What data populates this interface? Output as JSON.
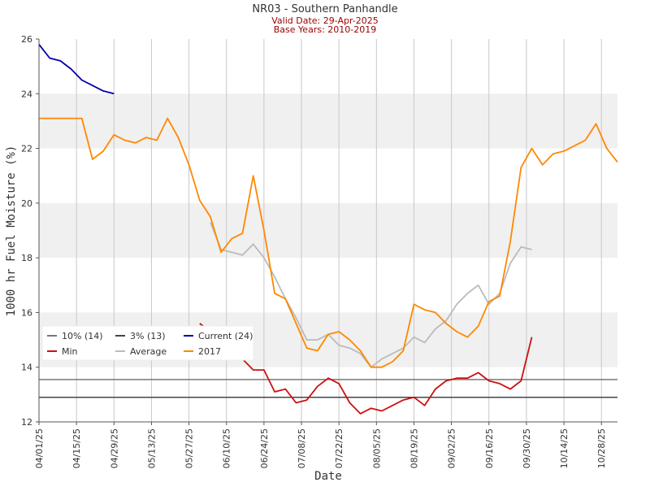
{
  "chart_data": {
    "type": "line",
    "title": "NR03 - Southern Panhandle",
    "subtitles": [
      "Valid Date: 29-Apr-2025",
      "Base Years: 2010-2019"
    ],
    "subtitle_color": "#990000",
    "x_label": "Date",
    "y_label": "1000 hr Fuel Moisture (%)",
    "x": [
      "04/01/25",
      "04/05/25",
      "04/09/25",
      "04/13/25",
      "04/17/25",
      "04/21/25",
      "04/25/25",
      "04/29/25",
      "05/03/25",
      "05/07/25",
      "05/11/25",
      "05/15/25",
      "05/19/25",
      "05/23/25",
      "05/27/25",
      "05/31/25",
      "06/04/25",
      "06/08/25",
      "06/12/25",
      "06/16/25",
      "06/20/25",
      "06/24/25",
      "06/28/25",
      "07/02/25",
      "07/06/25",
      "07/10/25",
      "07/14/25",
      "07/18/25",
      "07/22/25",
      "07/26/25",
      "07/30/25",
      "08/03/25",
      "08/07/25",
      "08/11/25",
      "08/15/25",
      "08/19/25",
      "08/23/25",
      "08/27/25",
      "08/31/25",
      "09/04/25",
      "09/08/25",
      "09/12/25",
      "09/16/25",
      "09/20/25",
      "09/24/25",
      "09/28/25",
      "10/02/25",
      "10/06/25",
      "10/10/25",
      "10/14/25",
      "10/18/25",
      "10/22/25",
      "10/26/25",
      "10/30/25",
      "11/03/25"
    ],
    "xlim": [
      "04/01/25",
      "11/03/25"
    ],
    "xticks": [
      "04/01/25",
      "04/15/25",
      "04/29/25",
      "05/13/25",
      "05/27/25",
      "06/10/25",
      "06/24/25",
      "07/08/25",
      "07/22/25",
      "08/05/25",
      "08/19/25",
      "09/02/25",
      "09/16/25",
      "09/30/25",
      "10/14/25",
      "10/28/25"
    ],
    "ylim": [
      12,
      26
    ],
    "yticks": [
      12,
      14,
      16,
      18,
      20,
      22,
      24,
      26
    ],
    "banded": true,
    "x_grid": true,
    "legend": "lower-left",
    "hlines": [
      {
        "name": "10% (14)",
        "color": "#777777",
        "value": 13.55
      },
      {
        "name": "3% (13)",
        "color": "#444444",
        "value": 12.9
      }
    ],
    "series": [
      {
        "name": "Current (24)",
        "color": "#0000aa",
        "values": [
          25.8,
          25.3,
          25.2,
          24.9,
          24.5,
          24.3,
          24.1,
          24.0,
          null,
          null,
          null,
          null,
          null,
          null,
          null,
          null,
          null,
          null,
          null,
          null,
          null,
          null,
          null,
          null,
          null,
          null,
          null,
          null,
          null,
          null,
          null,
          null,
          null,
          null,
          null,
          null,
          null,
          null,
          null,
          null,
          null,
          null,
          null,
          null,
          null,
          null,
          null,
          null,
          null,
          null,
          null,
          null,
          null,
          null,
          null
        ]
      },
      {
        "name": "Min",
        "color": "#cc1111",
        "values": [
          null,
          null,
          null,
          null,
          null,
          null,
          null,
          null,
          null,
          null,
          null,
          null,
          null,
          null,
          null,
          15.6,
          15.3,
          15.5,
          15.0,
          14.3,
          13.9,
          13.9,
          13.1,
          13.2,
          12.7,
          12.8,
          13.3,
          13.6,
          13.4,
          12.7,
          12.3,
          12.5,
          12.4,
          12.6,
          12.8,
          12.9,
          12.6,
          13.2,
          13.5,
          13.6,
          13.6,
          13.8,
          13.5,
          13.4,
          13.2,
          13.5,
          15.1,
          null,
          null,
          null,
          null,
          null,
          null,
          null,
          null
        ]
      },
      {
        "name": "Average",
        "color": "#bbbbbb",
        "values": [
          null,
          null,
          null,
          null,
          null,
          null,
          null,
          null,
          null,
          null,
          null,
          null,
          null,
          null,
          null,
          null,
          19.3,
          18.3,
          18.2,
          18.1,
          18.5,
          18.0,
          17.3,
          16.5,
          15.8,
          15.0,
          15.0,
          15.2,
          14.8,
          14.7,
          14.5,
          14.0,
          14.3,
          14.5,
          14.7,
          15.1,
          14.9,
          15.4,
          15.7,
          16.3,
          16.7,
          17.0,
          16.3,
          16.7,
          17.8,
          18.4,
          18.3,
          null,
          null,
          null,
          null,
          null,
          null,
          null,
          null
        ]
      },
      {
        "name": "2017",
        "color": "#ff8800",
        "values": [
          23.1,
          23.1,
          23.1,
          23.1,
          23.1,
          21.6,
          21.9,
          22.5,
          22.3,
          22.2,
          22.4,
          22.3,
          23.1,
          22.4,
          21.4,
          20.1,
          19.5,
          18.2,
          18.7,
          18.9,
          21.0,
          19.0,
          16.7,
          16.5,
          15.6,
          14.7,
          14.6,
          15.2,
          15.3,
          15.0,
          14.6,
          14.0,
          14.0,
          14.2,
          14.6,
          16.3,
          16.1,
          16.0,
          15.6,
          15.3,
          15.1,
          15.5,
          16.4,
          16.6,
          18.6,
          21.3,
          22.0,
          21.4,
          21.8,
          21.9,
          22.1,
          22.3,
          22.9,
          22.0,
          21.5
        ]
      }
    ]
  }
}
